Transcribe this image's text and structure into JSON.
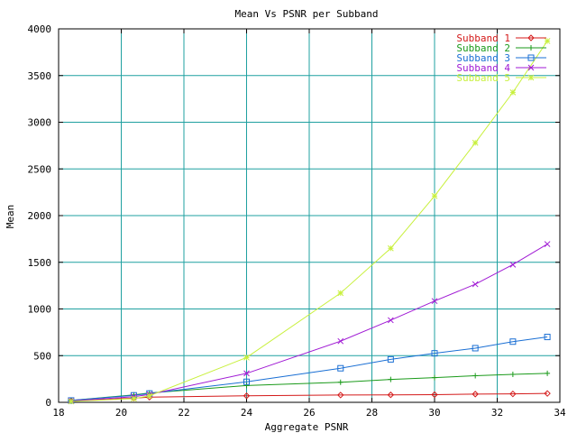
{
  "chart_data": {
    "type": "line",
    "title": "Mean Vs PSNR per Subband",
    "xlabel": "Aggregate PSNR",
    "ylabel": "Mean",
    "xlim": [
      18,
      34
    ],
    "ylim": [
      0,
      4000
    ],
    "xticks": [
      "18",
      "20",
      "22",
      "24",
      "26",
      "28",
      "30",
      "32",
      "34"
    ],
    "yticks": [
      "0",
      "500",
      "1000",
      "1500",
      "2000",
      "2500",
      "3000",
      "3500",
      "4000"
    ],
    "grid": true,
    "legend_position": "top-right",
    "colors": {
      "grid": "#1fa0a0",
      "axes": "#000000"
    },
    "series": [
      {
        "name": "Subband 1",
        "color": "#d41a1a",
        "marker": "diamond",
        "x": [
          18.4,
          20.4,
          20.9,
          24.0,
          27.0,
          28.6,
          30.0,
          31.3,
          32.5,
          33.6
        ],
        "y": [
          15,
          45,
          55,
          70,
          78,
          80,
          82,
          88,
          90,
          95
        ]
      },
      {
        "name": "Subband 2",
        "color": "#1a9a1a",
        "marker": "plus",
        "x": [
          18.4,
          20.4,
          20.9,
          24.0,
          27.0,
          28.6,
          30.0,
          31.3,
          32.5,
          33.6
        ],
        "y": [
          20,
          80,
          100,
          180,
          215,
          245,
          265,
          285,
          300,
          310
        ]
      },
      {
        "name": "Subband 3",
        "color": "#1a6fd4",
        "marker": "square",
        "x": [
          18.4,
          20.4,
          20.9,
          24.0,
          27.0,
          28.6,
          30.0,
          31.3,
          32.5,
          33.6
        ],
        "y": [
          20,
          75,
          95,
          220,
          365,
          460,
          525,
          580,
          650,
          700
        ]
      },
      {
        "name": "Subband 4",
        "color": "#a01ad4",
        "marker": "cross",
        "x": [
          18.4,
          20.4,
          20.9,
          24.0,
          27.0,
          28.6,
          30.0,
          31.3,
          32.5,
          33.6
        ],
        "y": [
          15,
          60,
          85,
          310,
          655,
          880,
          1085,
          1265,
          1475,
          1695
        ]
      },
      {
        "name": "Subband 5",
        "color": "#c8f03c",
        "marker": "star",
        "x": [
          18.4,
          20.4,
          20.9,
          24.0,
          27.0,
          28.6,
          30.0,
          31.3,
          32.5,
          33.6
        ],
        "y": [
          10,
          40,
          70,
          480,
          1170,
          1650,
          2210,
          2780,
          3320,
          3870
        ]
      }
    ]
  }
}
